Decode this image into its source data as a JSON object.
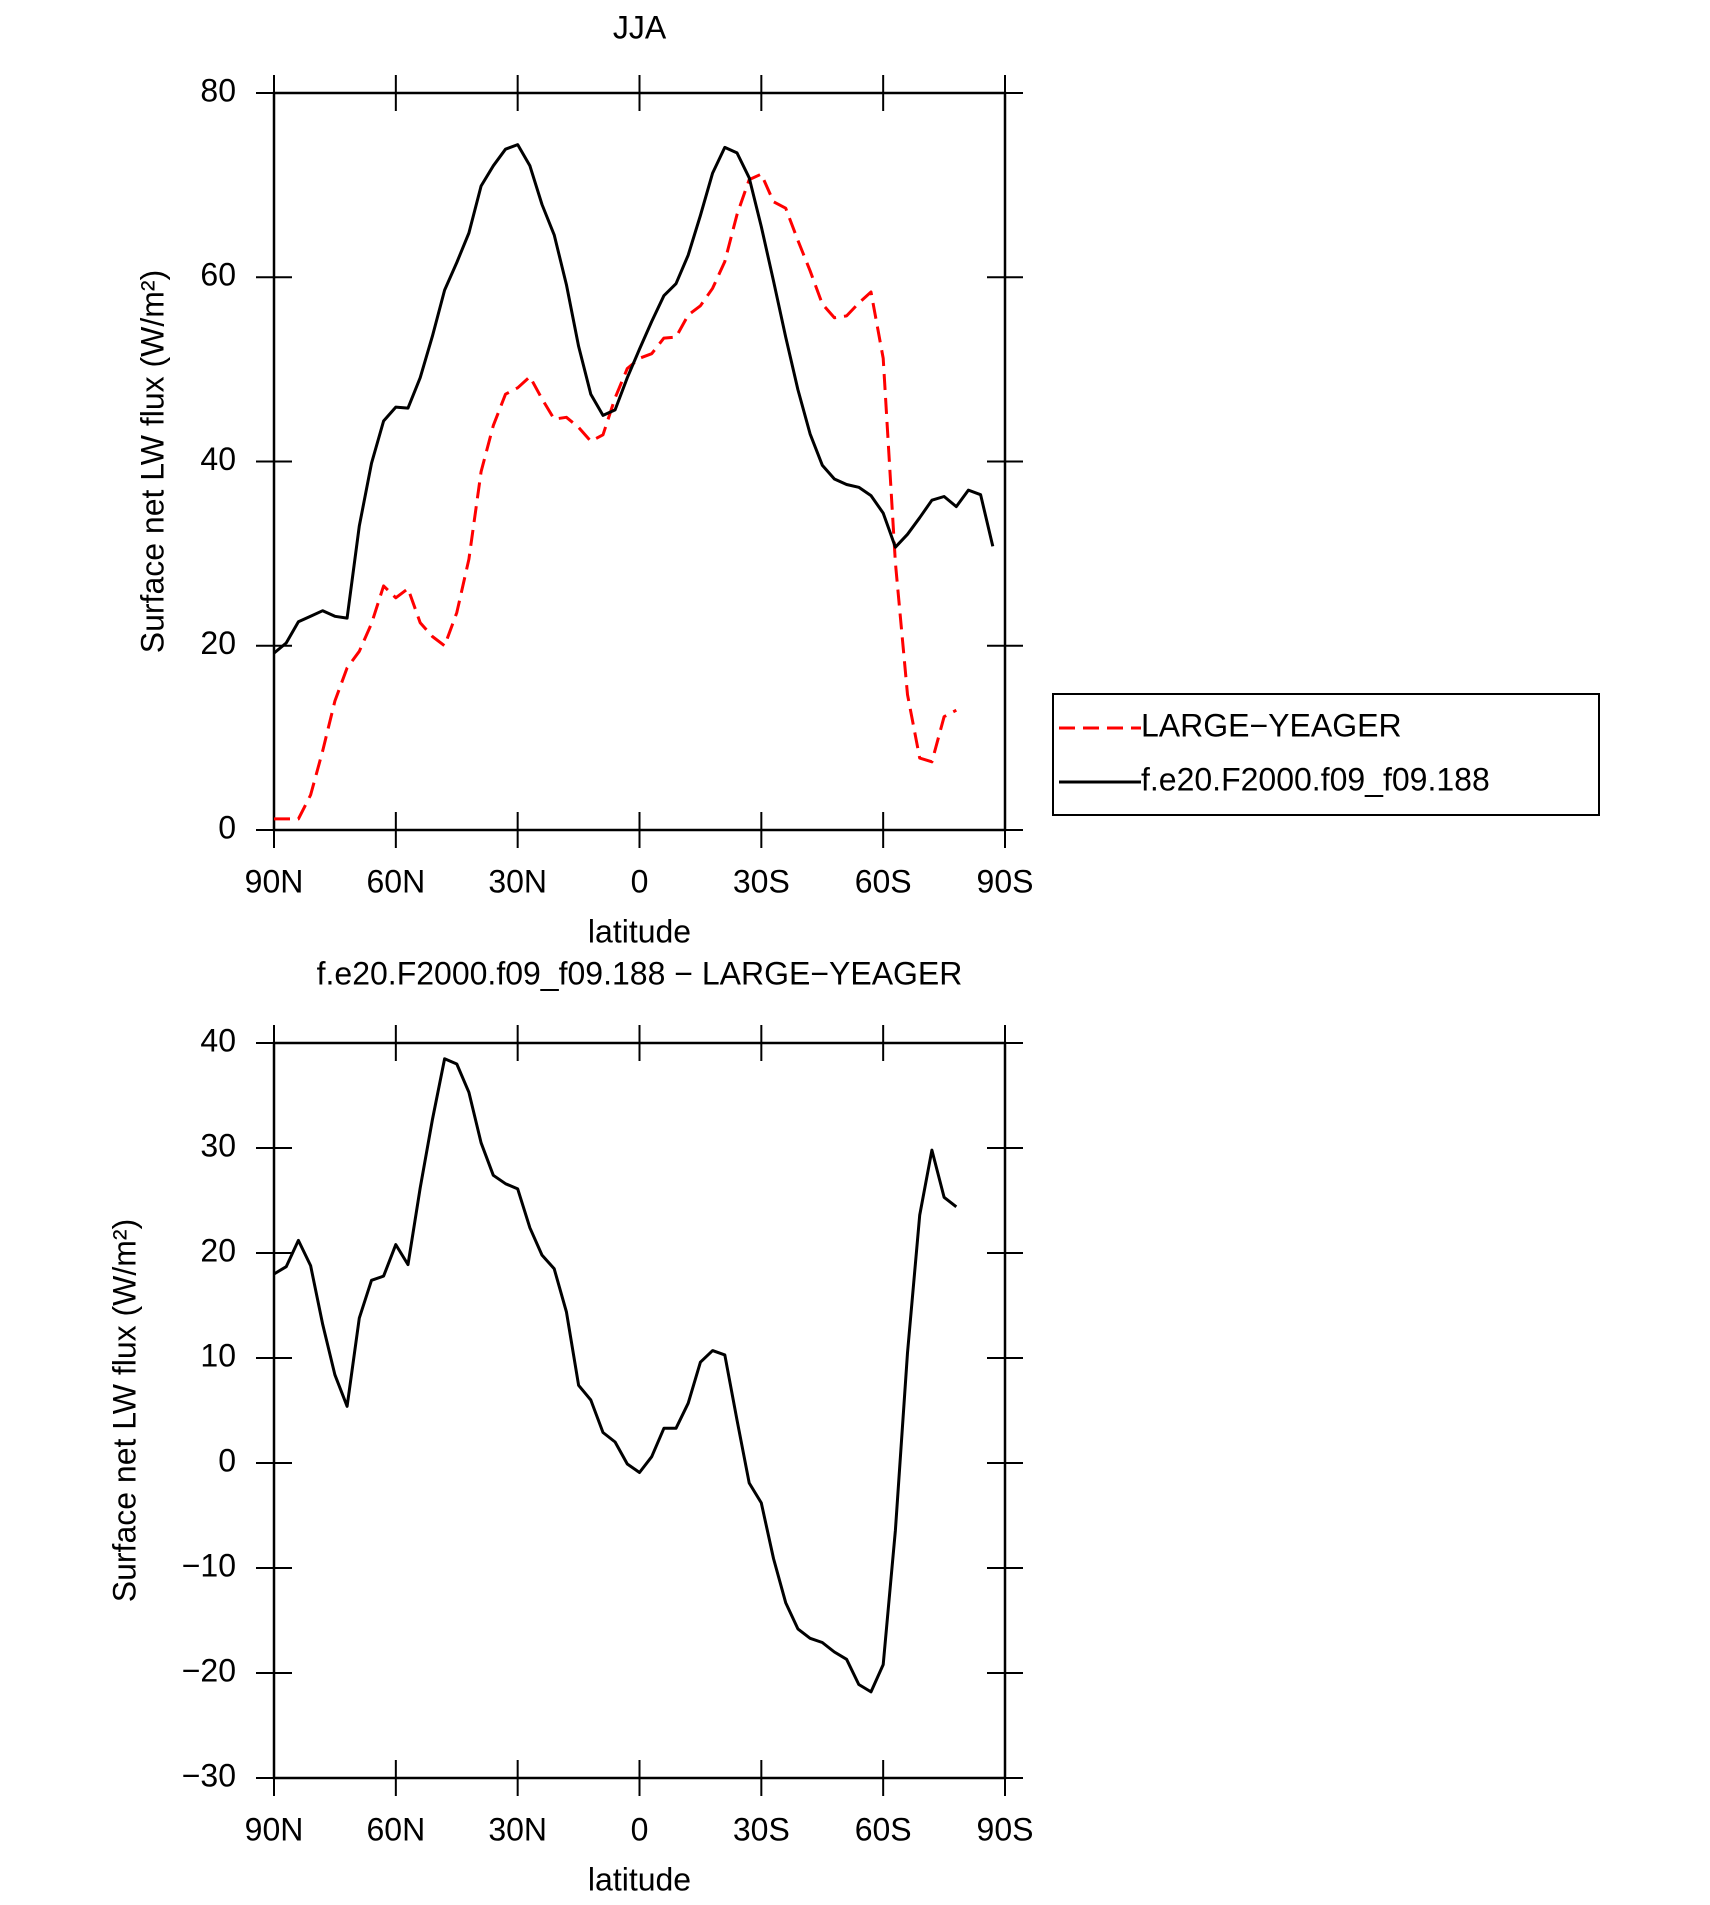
{
  "chart_data": [
    {
      "type": "line",
      "title": "JJA",
      "xlabel": "latitude",
      "ylabel": "Surface net LW flux (W/m²)",
      "x": [
        90,
        87,
        84,
        81,
        78,
        75,
        72,
        69,
        66,
        63,
        60,
        57,
        54,
        51,
        48,
        45,
        42,
        39,
        36,
        33,
        30,
        27,
        24,
        21,
        18,
        15,
        12,
        9,
        6,
        3,
        0,
        -3,
        -6,
        -9,
        -12,
        -15,
        -18,
        -21,
        -24,
        -27,
        -30,
        -33,
        -36,
        -39,
        -42,
        -45,
        -48,
        -51,
        -54,
        -57,
        -60,
        -63,
        -66,
        -69,
        -72,
        -75,
        -78,
        -81,
        -84,
        -87
      ],
      "series": [
        {
          "name": "LARGE−YEAGER",
          "color": "#ff0000",
          "dashed": true,
          "values": [
            1.2,
            1.2,
            1.2,
            3.8,
            8.6,
            14,
            17.6,
            19.4,
            22.4,
            26.5,
            25.2,
            26.2,
            22.5,
            21,
            20,
            23.6,
            29.4,
            38.9,
            43.9,
            47.3,
            48,
            49.2,
            46.8,
            44.6,
            44.8,
            43.7,
            42.2,
            42.9,
            46.9,
            50.1,
            51.2,
            51.7,
            53.4,
            53.5,
            55.9,
            56.9,
            58.8,
            61.7,
            66.8,
            70.6,
            71.2,
            68.2,
            67.5,
            64,
            60.7,
            57.1,
            55.6,
            55.8,
            57.2,
            58.4,
            51.2,
            29,
            14.7,
            7.8,
            7.4,
            12.3,
            13,
            null,
            null,
            null
          ]
        },
        {
          "name": "f.e20.F2000.f09_f09.188",
          "color": "#000000",
          "dashed": false,
          "values": [
            19.2,
            20.3,
            22.6,
            23.2,
            23.8,
            23.2,
            23,
            33,
            39.8,
            44.4,
            45.9,
            45.8,
            49.1,
            53.6,
            58.6,
            61.6,
            64.8,
            69.9,
            72.1,
            73.9,
            74.4,
            72.1,
            67.9,
            64.6,
            59.2,
            52.5,
            47.3,
            45,
            45.6,
            49.1,
            52.2,
            55.2,
            58,
            59.3,
            62.4,
            66.7,
            71.3,
            74.1,
            73.5,
            70.8,
            65.5,
            59.6,
            53.5,
            47.8,
            43,
            39.6,
            38.1,
            37.5,
            37.2,
            36.3,
            34.4,
            30.7,
            32.1,
            33.9,
            35.8,
            36.2,
            35.1,
            36.9,
            36.4,
            30.8
          ]
        }
      ],
      "xlim": [
        90,
        -90
      ],
      "xticks": [
        {
          "value": 90,
          "label": "90N"
        },
        {
          "value": 60,
          "label": "60N"
        },
        {
          "value": 30,
          "label": "30N"
        },
        0,
        {
          "value": -30,
          "label": "30S"
        },
        {
          "value": -60,
          "label": "60S"
        },
        {
          "value": -90,
          "label": "90S"
        }
      ],
      "ylim": [
        0,
        80
      ],
      "yticks": [
        0,
        20,
        40,
        60,
        80
      ],
      "legend": "right"
    },
    {
      "type": "line",
      "title": "f.e20.F2000.f09_f09.188 − LARGE−YEAGER",
      "xlabel": "latitude",
      "ylabel": "Surface net LW flux (W/m²)",
      "x": [
        90,
        87,
        84,
        81,
        78,
        75,
        72,
        69,
        66,
        63,
        60,
        57,
        54,
        51,
        48,
        45,
        42,
        39,
        36,
        33,
        30,
        27,
        24,
        21,
        18,
        15,
        12,
        9,
        6,
        3,
        0,
        -3,
        -6,
        -9,
        -12,
        -15,
        -18,
        -21,
        -24,
        -27,
        -30,
        -33,
        -36,
        -39,
        -42,
        -45,
        -48,
        -51,
        -54,
        -57,
        -60,
        -63,
        -66,
        -69,
        -72,
        -75,
        -78
      ],
      "series": [
        {
          "color": "#000000",
          "dashed": false,
          "values": [
            18,
            18.7,
            21.2,
            18.8,
            13.2,
            8.4,
            5.4,
            13.8,
            17.4,
            17.8,
            20.8,
            18.9,
            26.2,
            32.7,
            38.5,
            38,
            35.3,
            30.5,
            27.4,
            26.6,
            26.1,
            22.4,
            19.8,
            18.5,
            14.4,
            7.4,
            6,
            2.9,
            2,
            -0.1,
            -0.9,
            0.6,
            3.3,
            3.3,
            5.7,
            9.6,
            10.7,
            10.3,
            4.1,
            -1.9,
            -3.8,
            -9.1,
            -13.3,
            -15.8,
            -16.7,
            -17.1,
            -18,
            -18.7,
            -21.1,
            -21.8,
            -19.2,
            -6.4,
            10.5,
            23.6,
            29.8,
            25.3,
            24.4
          ]
        }
      ],
      "xlim": [
        90,
        -90
      ],
      "xticks": [
        {
          "value": 90,
          "label": "90N"
        },
        {
          "value": 60,
          "label": "60N"
        },
        {
          "value": 30,
          "label": "30N"
        },
        0,
        {
          "value": -30,
          "label": "30S"
        },
        {
          "value": -60,
          "label": "60S"
        },
        {
          "value": -90,
          "label": "90S"
        }
      ],
      "ylim": [
        -30,
        40
      ],
      "yticks": [
        {
          "value": -30,
          "label": "−30"
        },
        {
          "value": -20,
          "label": "−20"
        },
        {
          "value": -10,
          "label": "−10"
        },
        0,
        10,
        20,
        30,
        40
      ]
    }
  ]
}
